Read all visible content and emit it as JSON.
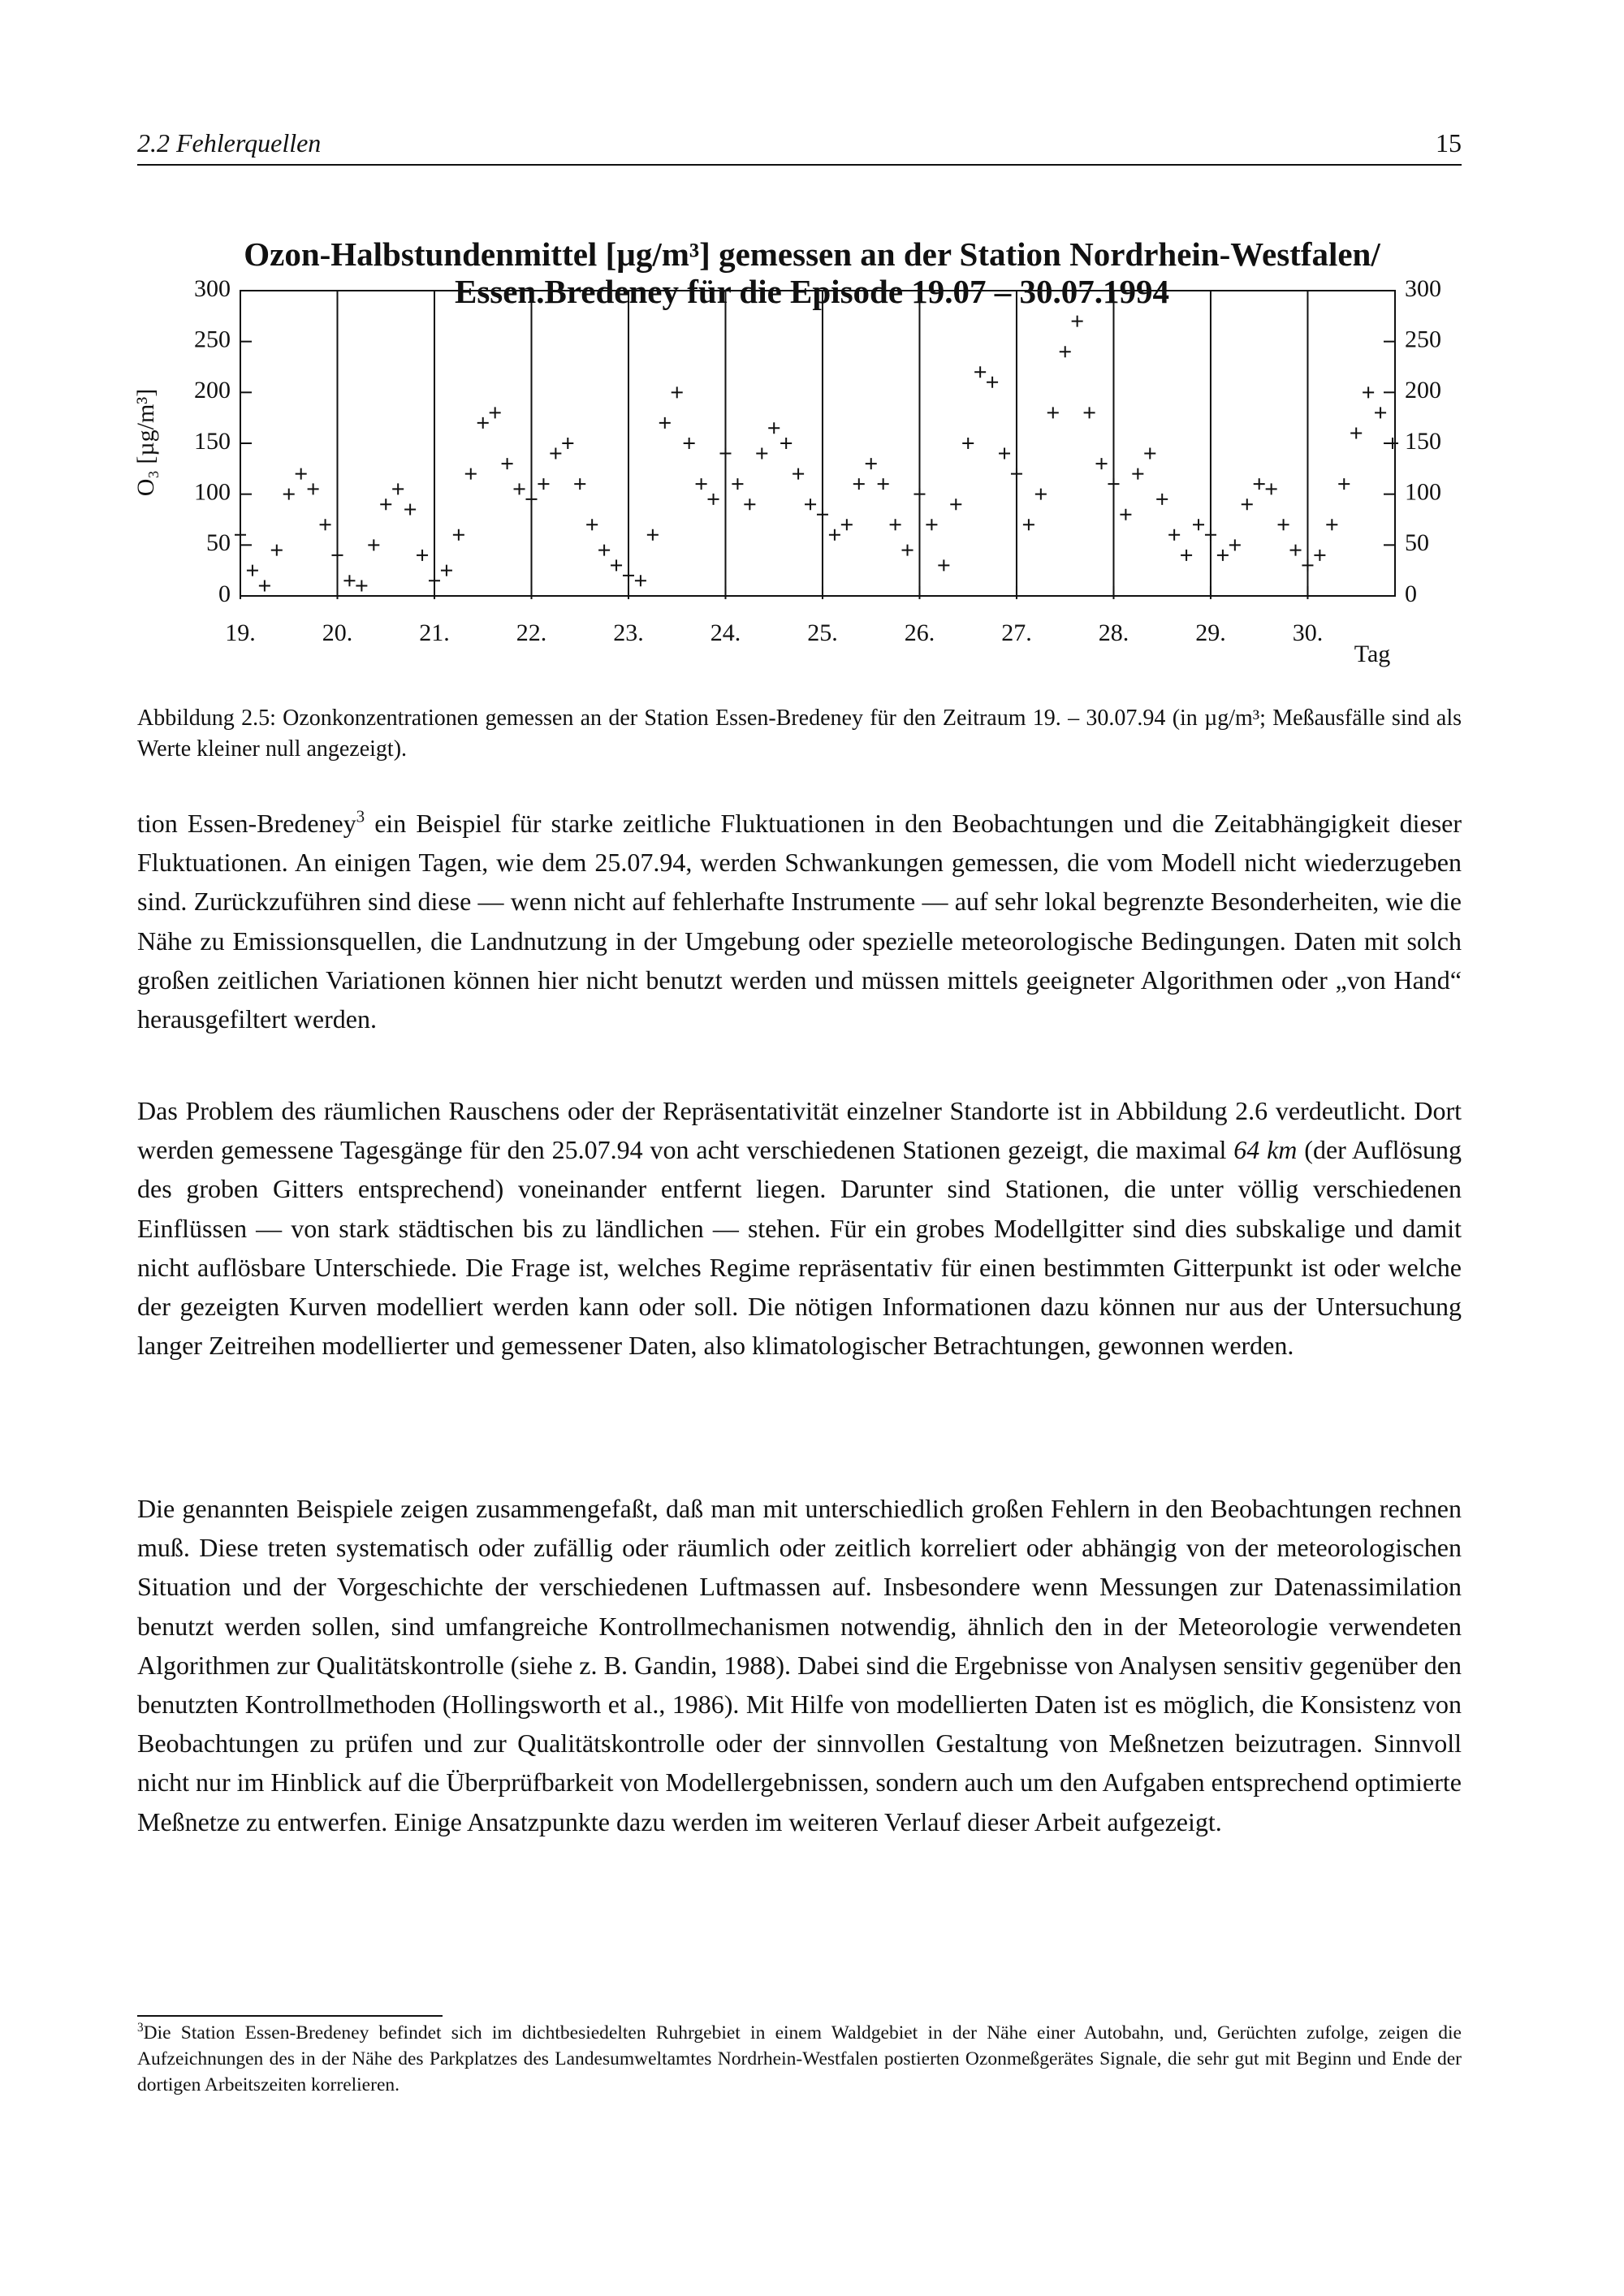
{
  "header": {
    "section": "2.2 Fehlerquellen",
    "page": "15"
  },
  "chart_data": {
    "type": "scatter",
    "title": "Ozon-Halbstundenmittel [µg/m³] gemessen an der Station Nordrhein-Westfalen/ Essen.Bredeney für die Episode 19.07 – 30.07.1994",
    "y_label": "O₃ [µg/m³]",
    "x_label": "Tag",
    "color": "#111111",
    "marker": "+",
    "grid": true,
    "xlim": [
      19,
      30.9
    ],
    "ylim": [
      0,
      300
    ],
    "xticks": [
      {
        "value": 19,
        "label": "19."
      },
      {
        "value": 20,
        "label": "20."
      },
      {
        "value": 21,
        "label": "21."
      },
      {
        "value": 22,
        "label": "22."
      },
      {
        "value": 23,
        "label": "23."
      },
      {
        "value": 24,
        "label": "24."
      },
      {
        "value": 25,
        "label": "25."
      },
      {
        "value": 26,
        "label": "26."
      },
      {
        "value": 27,
        "label": "27."
      },
      {
        "value": 28,
        "label": "28."
      },
      {
        "value": 29,
        "label": "29."
      },
      {
        "value": 30,
        "label": "30."
      }
    ],
    "yticks": [
      0,
      50,
      100,
      150,
      200,
      250,
      300
    ],
    "x": [
      19,
      19.125,
      19.25,
      19.375,
      19.5,
      19.625,
      19.75,
      19.875,
      20,
      20.125,
      20.25,
      20.375,
      20.5,
      20.625,
      20.75,
      20.875,
      21,
      21.125,
      21.25,
      21.375,
      21.5,
      21.625,
      21.75,
      21.875,
      22,
      22.125,
      22.25,
      22.375,
      22.5,
      22.625,
      22.75,
      22.875,
      23,
      23.125,
      23.25,
      23.375,
      23.5,
      23.625,
      23.75,
      23.875,
      24,
      24.125,
      24.25,
      24.375,
      24.5,
      24.625,
      24.75,
      24.875,
      25,
      25.125,
      25.25,
      25.375,
      25.5,
      25.625,
      25.75,
      25.875,
      26,
      26.125,
      26.25,
      26.375,
      26.5,
      26.625,
      26.75,
      26.875,
      27,
      27.125,
      27.25,
      27.375,
      27.5,
      27.625,
      27.75,
      27.875,
      28,
      28.125,
      28.25,
      28.375,
      28.5,
      28.625,
      28.75,
      28.875,
      29,
      29.125,
      29.25,
      29.375,
      29.5,
      29.625,
      29.75,
      29.875,
      30,
      30.125,
      30.25,
      30.375,
      30.5,
      30.625,
      30.75,
      30.875
    ],
    "values": [
      60,
      25,
      10,
      45,
      100,
      120,
      105,
      70,
      40,
      15,
      10,
      50,
      90,
      105,
      85,
      40,
      15,
      25,
      60,
      120,
      170,
      180,
      130,
      105,
      95,
      110,
      140,
      150,
      110,
      70,
      45,
      30,
      20,
      15,
      60,
      170,
      200,
      150,
      110,
      95,
      140,
      110,
      90,
      140,
      165,
      150,
      120,
      90,
      80,
      60,
      70,
      110,
      130,
      110,
      70,
      45,
      100,
      70,
      30,
      90,
      150,
      220,
      210,
      140,
      120,
      70,
      100,
      180,
      240,
      270,
      180,
      130,
      110,
      80,
      120,
      140,
      95,
      60,
      40,
      70,
      60,
      40,
      50,
      90,
      110,
      105,
      70,
      45,
      30,
      40,
      70,
      110,
      160,
      200,
      180,
      150
    ]
  },
  "caption": "Abbildung 2.5: Ozonkonzentrationen gemessen an der Station Essen-Bredeney für den Zeitraum 19. – 30.07.94 (in µg/m³; Meßausfälle sind als Werte kleiner null angezeigt).",
  "paragraphs": [
    [
      "tion Essen-Bredeney",
      "3",
      " ein Beispiel für starke zeitliche Fluktuationen in den Beobachtungen und die Zeitabhängigkeit dieser Fluktuationen. An einigen Tagen, wie dem 25.07.94, werden Schwankungen gemessen, die vom Modell nicht wiederzugeben sind. Zurückzuführen sind diese — wenn nicht auf fehlerhafte Instrumente — auf sehr lokal begrenzte Besonderheiten, wie die Nähe zu Emissionsquellen, die Landnutzung in der Umgebung oder spezielle meteorologische Bedingungen. Daten mit solch großen zeitlichen Variationen können hier nicht benutzt werden und müssen mittels geeigneter Algorithmen oder „von Hand“ herausgefiltert werden."
    ],
    [
      "Das Problem des räumlichen Rauschens oder der Repräsentativität einzelner Standorte ist in Abbildung 2.6 verdeutlicht. Dort werden gemessene Tagesgänge für den 25.07.94 von acht verschiedenen Stationen gezeigt, die maximal ",
      "64 km",
      " (der Auflösung des groben Gitters entsprechend) voneinander entfernt liegen. Darunter sind Stationen, die unter völlig verschiedenen Einflüssen — von stark städtischen bis zu ländlichen — stehen. Für ein grobes Modellgitter sind dies subskalige und damit nicht auflösbare Unterschiede. Die Frage ist, welches Regime repräsentativ für einen bestimmten Gitterpunkt ist oder welche der gezeigten Kurven modelliert werden kann oder soll. Die nötigen Informationen dazu können nur aus der Untersuchung langer Zeitreihen modellierter und gemessener Daten, also klimatologischer Betrachtungen, gewonnen werden."
    ],
    [
      "Die genannten Beispiele zeigen zusammengefaßt, daß man mit unterschiedlich großen Fehlern in den Beobachtungen rechnen muß. Diese treten systematisch oder zufällig oder räumlich oder zeitlich korreliert oder abhängig von der meteorologischen Situation und der Vorgeschichte der verschiedenen Luftmassen auf. Insbesondere wenn Messungen zur Datenassimilation benutzt werden sollen, sind umfangreiche Kontrollmechanismen notwendig, ähnlich den in der Meteorologie verwendeten Algorithmen zur Qualitätskontrolle (siehe z. B. Gandin, 1988). Dabei sind die Ergebnisse von Analysen sensitiv gegenüber den benutzten Kontrollmethoden (Hollingsworth et al., 1986). Mit Hilfe von modellierten Daten ist es möglich, die Konsistenz von Beobachtungen zu prüfen und zur Qualitätskontrolle oder der sinnvollen Gestaltung von Meßnetzen beizutragen. Sinnvoll nicht nur im Hinblick auf die Überprüfbarkeit von Modellergebnissen, sondern auch um den Aufgaben entsprechend optimierte Meßnetze zu entwerfen. Einige Ansatzpunkte dazu werden im weiteren Verlauf dieser Arbeit aufgezeigt."
    ]
  ],
  "footnote": {
    "mark": "3",
    "text": "Die Station Essen-Bredeney befindet sich im dichtbesiedelten Ruhrgebiet in einem Waldgebiet in der Nähe einer Autobahn, und, Gerüchten zufolge, zeigen die Aufzeichnungen des in der Nähe des Parkplatzes des Landesumweltamtes Nordrhein-Westfalen postierten Ozonmeßgerätes Signale, die sehr gut mit Beginn und Ende der dortigen Arbeitszeiten korrelieren."
  }
}
